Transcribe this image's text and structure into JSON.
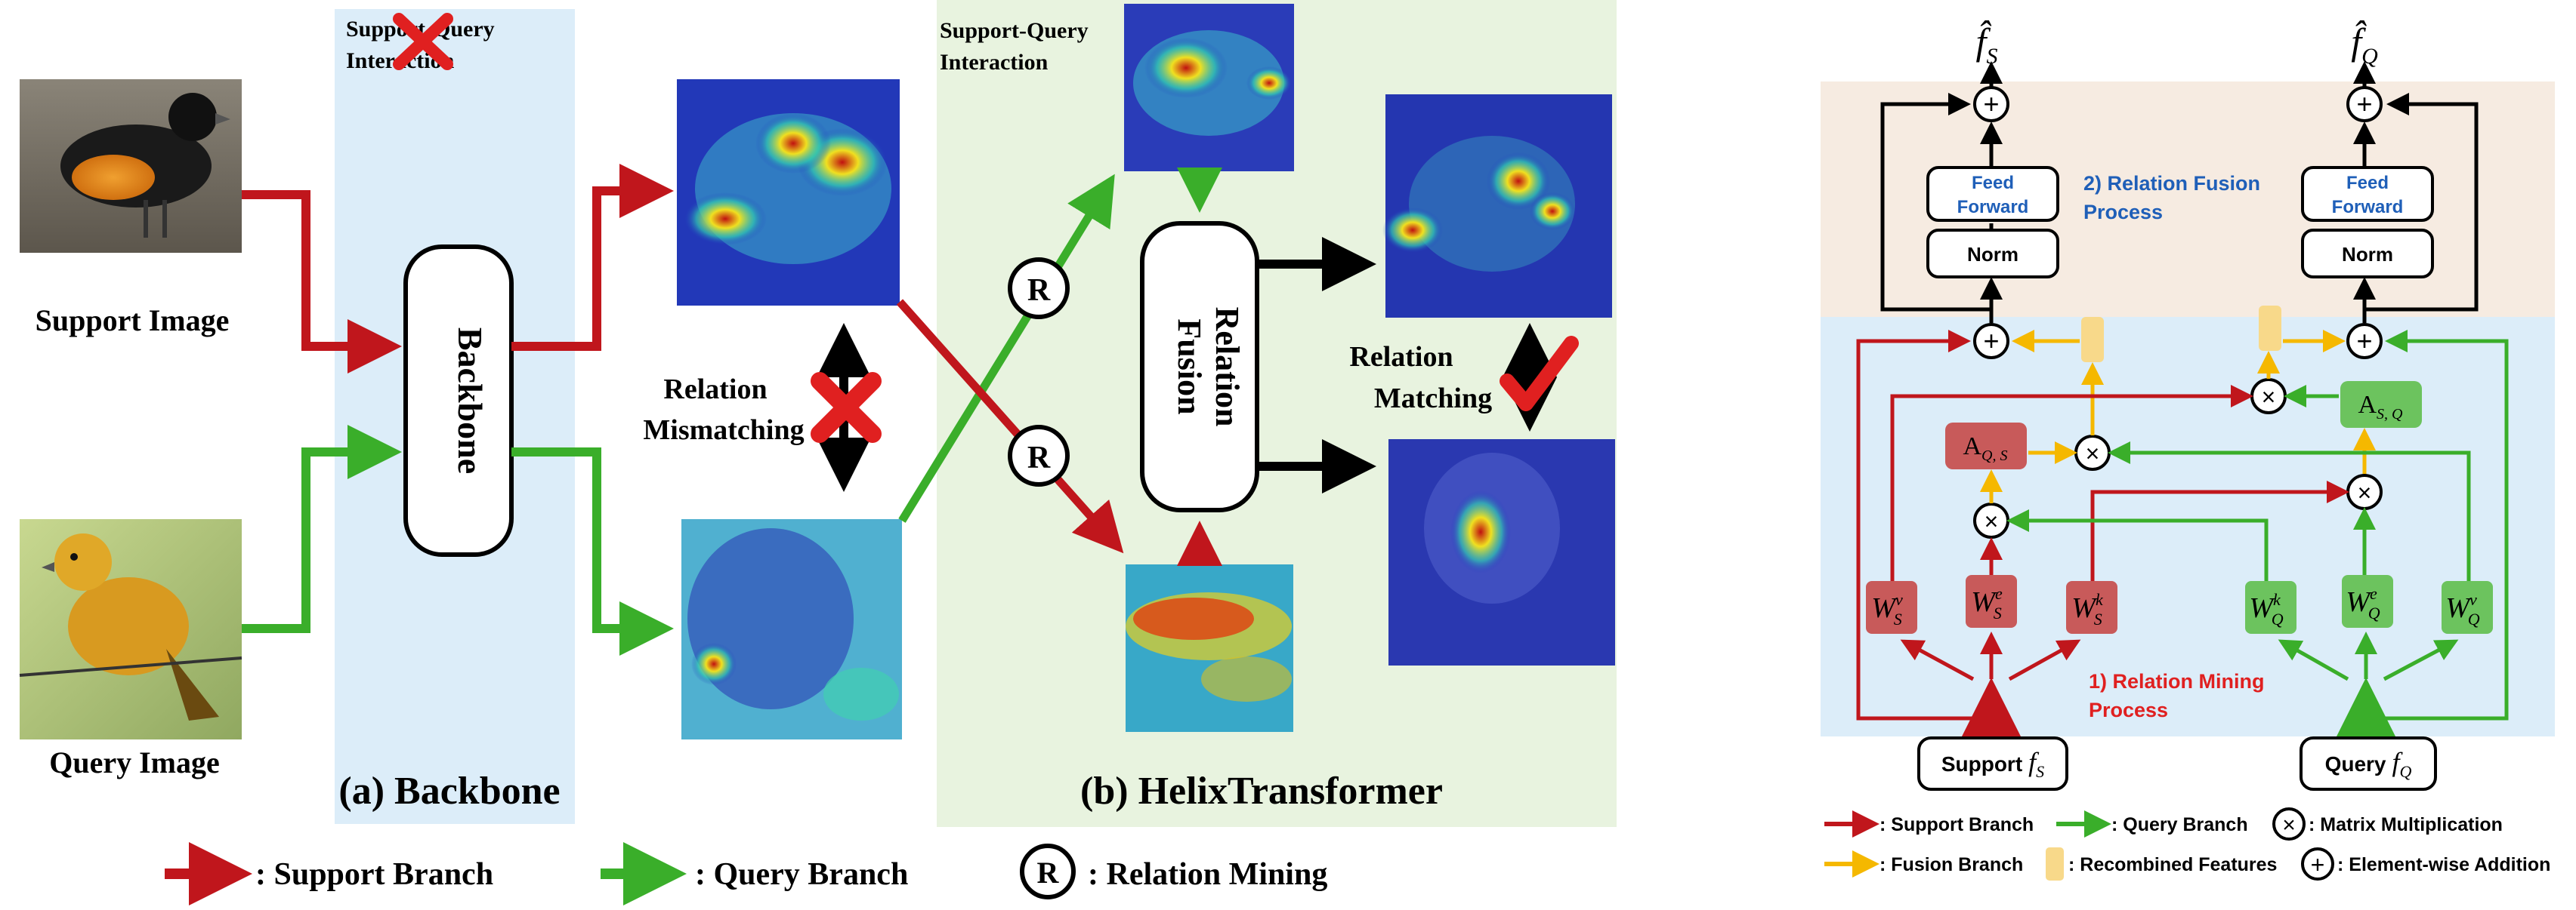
{
  "left_panel": {
    "support_image_label": "Support Image",
    "query_image_label": "Query Image",
    "backbone_box": "Backbone",
    "support_query_interaction_a": [
      "Support-Query",
      "Interaction"
    ],
    "support_query_interaction_b": [
      "Support-Query",
      "Interaction"
    ],
    "relation_mismatching": [
      "Relation",
      "Mismatching"
    ],
    "relation_matching": [
      "Relation",
      "Matching"
    ],
    "relation_fusion_box": [
      "Relation",
      "Fusion"
    ],
    "caption_a": "(a) Backbone",
    "caption_b": "(b) HelixTransformer",
    "relation_mining_symbol": "R"
  },
  "legend_bottom": {
    "support_branch": ": Support Branch",
    "query_branch": ": Query Branch",
    "relation_mining": ": Relation Mining",
    "relation_mining_symbol": "R"
  },
  "right_panel": {
    "output_support": "f̂",
    "output_support_sub": "S",
    "output_query": "f̂",
    "output_query_sub": "Q",
    "feed_forward": [
      "Feed",
      "Forward"
    ],
    "norm": "Norm",
    "fusion_process": [
      "2) Relation Fusion",
      "Process"
    ],
    "mining_process": [
      "1) Relation Mining",
      "Process"
    ],
    "a_qs": "A",
    "a_qs_sub": "Q, S",
    "a_sq": "A",
    "a_sq_sub": "S, Q",
    "w_labels": [
      {
        "base": "W",
        "sub": "S",
        "sup": "v"
      },
      {
        "base": "W",
        "sub": "S",
        "sup": "e"
      },
      {
        "base": "W",
        "sub": "S",
        "sup": "k"
      },
      {
        "base": "W",
        "sub": "Q",
        "sup": "k"
      },
      {
        "base": "W",
        "sub": "Q",
        "sup": "e"
      },
      {
        "base": "W",
        "sub": "Q",
        "sup": "v"
      }
    ],
    "support_input": "Support",
    "support_input_f": "f",
    "support_input_sub": "S",
    "query_input": "Query",
    "query_input_f": "f",
    "query_input_sub": "Q",
    "plus_symbol": "+",
    "times_symbol": "×"
  },
  "legend_right": {
    "support_branch": ": Support Branch",
    "query_branch": ": Query Branch",
    "matrix_mult": ": Matrix Multiplication",
    "fusion_branch": ": Fusion Branch",
    "recombined": ": Recombined Features",
    "elementwise": ": Element-wise Addition"
  },
  "colors": {
    "support": "#c0161c",
    "query": "#3aae2a",
    "fusion": "#f5b800",
    "backbone_bg": "#dcedf9",
    "helix_bg": "#e8f3df",
    "fusion_bg": "#f6ebe1",
    "mining_bg": "#dcedf9",
    "red_box": "#c85a5a",
    "green_box": "#6cc35e",
    "recombined": "#f8d98a",
    "blue_text": "#1f5fb8",
    "red_text": "#e02020"
  }
}
